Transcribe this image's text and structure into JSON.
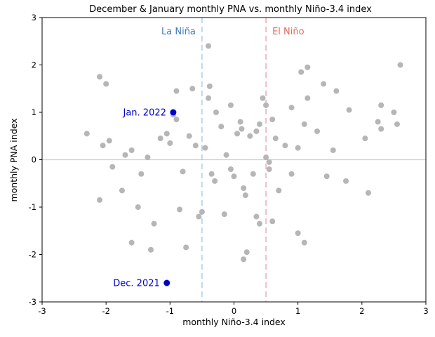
{
  "chart_data": {
    "type": "scatter",
    "title": "December & January monthly PNA vs. monthly Niño-3.4 index",
    "xlabel": "monthly Niño-3.4 index",
    "ylabel": "monthly PNA index",
    "xlim": [
      -3,
      3
    ],
    "ylim": [
      -3,
      3
    ],
    "xticks": [
      -3,
      -2,
      -1,
      0,
      1,
      2,
      3
    ],
    "yticks": [
      -3,
      -2,
      -1,
      0,
      1,
      2,
      3
    ],
    "grid": false,
    "reference_lines": [
      {
        "name": "zero-line",
        "orientation": "horizontal",
        "value": 0,
        "label": "",
        "line_color": "#cfcfcf",
        "style": "solid"
      },
      {
        "name": "la-nina-line",
        "orientation": "vertical",
        "value": -0.5,
        "label": "La Niña",
        "line_color": "#a4cbe5",
        "label_color": "#3d7ab8",
        "style": "dashed",
        "label_side": "left"
      },
      {
        "name": "el-nino-line",
        "orientation": "vertical",
        "value": 0.5,
        "label": "El Niño",
        "line_color": "#e8a6ae",
        "label_color": "#e0695e",
        "style": "dashed",
        "label_side": "right"
      }
    ],
    "series": [
      {
        "name": "historical-months",
        "color": "#b6b6b6",
        "marker_radius": 4,
        "points": [
          [
            -2.3,
            0.55
          ],
          [
            -2.1,
            1.75
          ],
          [
            -2.0,
            1.6
          ],
          [
            -2.05,
            0.3
          ],
          [
            -1.95,
            0.4
          ],
          [
            -1.9,
            -0.15
          ],
          [
            -2.1,
            -0.85
          ],
          [
            -1.75,
            -0.65
          ],
          [
            -1.7,
            0.1
          ],
          [
            -1.6,
            0.2
          ],
          [
            -1.6,
            -1.75
          ],
          [
            -1.5,
            -1.0
          ],
          [
            -1.45,
            -0.3
          ],
          [
            -1.35,
            0.05
          ],
          [
            -1.3,
            -1.9
          ],
          [
            -1.25,
            -1.35
          ],
          [
            -1.15,
            0.45
          ],
          [
            -1.05,
            0.55
          ],
          [
            -1.0,
            0.35
          ],
          [
            -0.95,
            0.95
          ],
          [
            -0.9,
            0.85
          ],
          [
            -0.9,
            1.45
          ],
          [
            -0.85,
            -1.05
          ],
          [
            -0.8,
            -0.25
          ],
          [
            -0.75,
            -1.85
          ],
          [
            -0.7,
            0.5
          ],
          [
            -0.65,
            1.5
          ],
          [
            -0.6,
            0.3
          ],
          [
            -0.55,
            -1.2
          ],
          [
            -0.5,
            -1.1
          ],
          [
            -0.45,
            0.25
          ],
          [
            -0.4,
            2.4
          ],
          [
            -0.4,
            1.3
          ],
          [
            -0.38,
            1.55
          ],
          [
            -0.35,
            -0.3
          ],
          [
            -0.3,
            -0.45
          ],
          [
            -0.28,
            1.0
          ],
          [
            -0.2,
            0.7
          ],
          [
            -0.15,
            -1.15
          ],
          [
            -0.12,
            0.1
          ],
          [
            -0.05,
            1.15
          ],
          [
            -0.05,
            -0.2
          ],
          [
            0.0,
            -0.35
          ],
          [
            0.05,
            0.55
          ],
          [
            0.1,
            0.8
          ],
          [
            0.12,
            0.65
          ],
          [
            0.15,
            -0.6
          ],
          [
            0.18,
            -0.75
          ],
          [
            0.2,
            -1.95
          ],
          [
            0.15,
            -2.1
          ],
          [
            0.25,
            0.5
          ],
          [
            0.3,
            -0.3
          ],
          [
            0.35,
            0.6
          ],
          [
            0.35,
            -1.2
          ],
          [
            0.4,
            0.75
          ],
          [
            0.4,
            -1.35
          ],
          [
            0.45,
            1.3
          ],
          [
            0.5,
            1.15
          ],
          [
            0.5,
            0.05
          ],
          [
            0.55,
            -0.05
          ],
          [
            0.55,
            -0.2
          ],
          [
            0.6,
            0.85
          ],
          [
            0.6,
            -1.3
          ],
          [
            0.65,
            0.45
          ],
          [
            0.7,
            -0.65
          ],
          [
            0.8,
            0.3
          ],
          [
            0.9,
            1.1
          ],
          [
            0.9,
            -0.3
          ],
          [
            1.0,
            0.25
          ],
          [
            1.0,
            -1.55
          ],
          [
            1.05,
            1.85
          ],
          [
            1.1,
            -1.75
          ],
          [
            1.15,
            1.95
          ],
          [
            1.1,
            0.75
          ],
          [
            1.15,
            1.3
          ],
          [
            1.3,
            0.6
          ],
          [
            1.4,
            1.6
          ],
          [
            1.45,
            -0.35
          ],
          [
            1.55,
            0.2
          ],
          [
            1.6,
            1.45
          ],
          [
            1.75,
            -0.45
          ],
          [
            1.8,
            1.05
          ],
          [
            2.05,
            0.45
          ],
          [
            2.1,
            -0.7
          ],
          [
            2.25,
            0.8
          ],
          [
            2.3,
            0.65
          ],
          [
            2.3,
            1.15
          ],
          [
            2.5,
            1.0
          ],
          [
            2.55,
            0.75
          ],
          [
            2.6,
            2.0
          ]
        ]
      },
      {
        "name": "highlighted-months",
        "color": "#0000cd",
        "marker_radius": 4.5,
        "points": [
          {
            "label": "Jan. 2022",
            "x": -0.95,
            "y": 1.0
          },
          {
            "label": "Dec. 2021",
            "x": -1.05,
            "y": -2.6
          }
        ]
      }
    ]
  }
}
